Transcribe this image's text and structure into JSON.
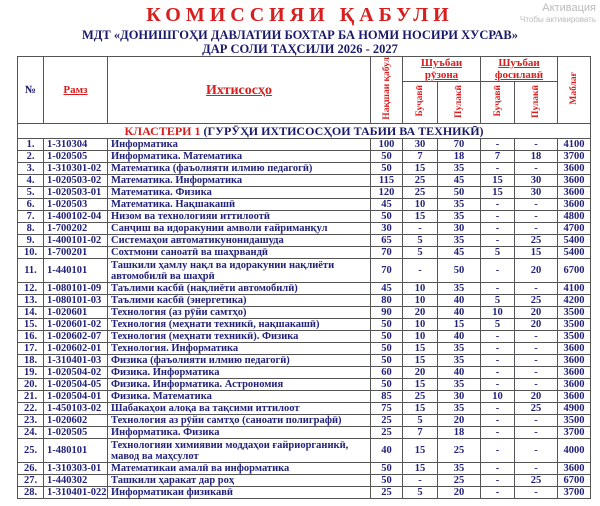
{
  "header": {
    "title": "КОМИССИЯИ ҚАБУЛИ",
    "subtitle": "МДТ «ДОНИШГОҲИ ДАВЛАТИИ БОХТАР БА НОМИ НОСИРИ ХУСРАВ»",
    "year_line": "ДАР СОЛИ ТАҲСИЛИ 2026 - 2027"
  },
  "columns": {
    "no": "№",
    "code": "Рамз",
    "name": "Ихтисосҳо",
    "plan": "Нақшаи қабул",
    "day": "Шуъбаи рӯзона",
    "distance": "Шуъбаи фосилавӣ",
    "budget": "Буҷавӣ",
    "paid": "Пулакӣ",
    "fee": "Маблағ"
  },
  "cluster": {
    "label": "КЛАСТЕРИ 1",
    "rest": "(ГУРӮҲИ ИХТИСОСҲОИ ТАБИИ ВА ТЕХНИКӢ)"
  },
  "rows": [
    {
      "no": "1.",
      "code": "1-310304",
      "name": "Информатика",
      "plan": "100",
      "db": "30",
      "dp": "70",
      "fb": "-",
      "fp": "-",
      "fee": "4100"
    },
    {
      "no": "2.",
      "code": "1-020505",
      "name": "Информатика. Математика",
      "plan": "50",
      "db": "7",
      "dp": "18",
      "fb": "7",
      "fp": "18",
      "fee": "3700"
    },
    {
      "no": "3.",
      "code": "1-310301-02",
      "name": "Математика (фаъолияти илмию педагогӣ)",
      "plan": "50",
      "db": "15",
      "dp": "35",
      "fb": "-",
      "fp": "-",
      "fee": "3600"
    },
    {
      "no": "4.",
      "code": "1-020503-02",
      "name": "Математика. Информатика",
      "plan": "115",
      "db": "25",
      "dp": "45",
      "fb": "15",
      "fp": "30",
      "fee": "3600"
    },
    {
      "no": "5.",
      "code": "1-020503-01",
      "name": "Математика. Физика",
      "plan": "120",
      "db": "25",
      "dp": "50",
      "fb": "15",
      "fp": "30",
      "fee": "3600"
    },
    {
      "no": "6.",
      "code": "1-020503",
      "name": "Математика. Нақшакашӣ",
      "plan": "45",
      "db": "10",
      "dp": "35",
      "fb": "-",
      "fp": "-",
      "fee": "3600"
    },
    {
      "no": "7.",
      "code": "1-400102-04",
      "name": "Низом ва технологияи иттилоотӣ",
      "plan": "50",
      "db": "15",
      "dp": "35",
      "fb": "-",
      "fp": "-",
      "fee": "4800"
    },
    {
      "no": "8.",
      "code": "1-700202",
      "name": "Санҷиш ва идоракунии амволи ғайриманқул",
      "plan": "30",
      "db": "-",
      "dp": "30",
      "fb": "-",
      "fp": "-",
      "fee": "4700"
    },
    {
      "no": "9.",
      "code": "1-400101-02",
      "name": "Системаҳои автоматикунонидашуда",
      "plan": "65",
      "db": "5",
      "dp": "35",
      "fb": "-",
      "fp": "25",
      "fee": "5400"
    },
    {
      "no": "10.",
      "code": "1-700201",
      "name": "Сохтмони саноатӣ ва шаҳрвандӣ",
      "plan": "70",
      "db": "5",
      "dp": "45",
      "fb": "5",
      "fp": "15",
      "fee": "5400"
    },
    {
      "no": "11.",
      "code": "1-440101",
      "name": "Ташкили ҳамлу нақл ва идоракунии нақлиёти автомобилӣ ва  шаҳрӣ",
      "plan": "70",
      "db": "-",
      "dp": "50",
      "fb": "-",
      "fp": "20",
      "fee": "6700"
    },
    {
      "no": "12.",
      "code": "1-080101-09",
      "name": "Таълими касбӣ (нақлиёти автомобилӣ)",
      "plan": "45",
      "db": "10",
      "dp": "35",
      "fb": "-",
      "fp": "-",
      "fee": "4100"
    },
    {
      "no": "13.",
      "code": "1-080101-03",
      "name": "Таълими касбӣ (энергетика)",
      "plan": "80",
      "db": "10",
      "dp": "40",
      "fb": "5",
      "fp": "25",
      "fee": "4200"
    },
    {
      "no": "14.",
      "code": "1-020601",
      "name": "Технология (аз рӯйи самтҳо)",
      "plan": "90",
      "db": "20",
      "dp": "40",
      "fb": "10",
      "fp": "20",
      "fee": "3500"
    },
    {
      "no": "15.",
      "code": "1-020601-02",
      "name": "Технология (меҳнати техникӣ, нақшакашӣ)",
      "plan": "50",
      "db": "10",
      "dp": "15",
      "fb": "5",
      "fp": "20",
      "fee": "3500"
    },
    {
      "no": "16.",
      "code": "1-020602-07",
      "name": "Технология (меҳнати техникӣ). Физика",
      "plan": "50",
      "db": "10",
      "dp": "40",
      "fb": "-",
      "fp": "-",
      "fee": "3500"
    },
    {
      "no": "17.",
      "code": "1-020602-01",
      "name": "Технология. Информатика",
      "plan": "50",
      "db": "15",
      "dp": "35",
      "fb": "-",
      "fp": "-",
      "fee": "3600"
    },
    {
      "no": "18.",
      "code": "1-310401-03",
      "name": "Физика (фаъолияти илмию педагогӣ)",
      "plan": "50",
      "db": "15",
      "dp": "35",
      "fb": "-",
      "fp": "-",
      "fee": "3600"
    },
    {
      "no": "19.",
      "code": "1-020504-02",
      "name": "Физика. Информатика",
      "plan": "60",
      "db": "20",
      "dp": "40",
      "fb": "-",
      "fp": "-",
      "fee": "3600"
    },
    {
      "no": "20.",
      "code": "1-020504-05",
      "name": "Физика. Информатика. Астрономия",
      "plan": "50",
      "db": "15",
      "dp": "35",
      "fb": "-",
      "fp": "-",
      "fee": "3600"
    },
    {
      "no": "21.",
      "code": "1-020504-01",
      "name": "Физика. Математика",
      "plan": "85",
      "db": "25",
      "dp": "30",
      "fb": "10",
      "fp": "20",
      "fee": "3600"
    },
    {
      "no": "22.",
      "code": "1-450103-02",
      "name": "Шабакаҳои алоқа ва тақсими иттилоот",
      "plan": "75",
      "db": "15",
      "dp": "35",
      "fb": "-",
      "fp": "25",
      "fee": "4900"
    },
    {
      "no": "23.",
      "code": "1-020602",
      "name": "Технология аз рӯйи самтҳо (саноати полиграфӣ)",
      "plan": "25",
      "db": "5",
      "dp": "20",
      "fb": "-",
      "fp": "-",
      "fee": "3500"
    },
    {
      "no": "24.",
      "code": "1-020505",
      "name": "Информатика. Физика",
      "plan": "25",
      "db": "7",
      "dp": "18",
      "fb": "-",
      "fp": "-",
      "fee": "3700"
    },
    {
      "no": "25.",
      "code": "1-480101",
      "name": "Технологияи химиявии моддаҳои ғайриорганикӣ, мавод ва маҳсулот",
      "plan": "40",
      "db": "15",
      "dp": "25",
      "fb": "-",
      "fp": "-",
      "fee": "4000"
    },
    {
      "no": "26.",
      "code": "1-310303-01",
      "name": "Математикаи амалӣ ва информатика",
      "plan": "50",
      "db": "15",
      "dp": "35",
      "fb": "-",
      "fp": "-",
      "fee": "3600"
    },
    {
      "no": "27.",
      "code": "1-440302",
      "name": "Ташкили ҳаракат дар роҳ",
      "plan": "50",
      "db": "-",
      "dp": "25",
      "fb": "-",
      "fp": "25",
      "fee": "6700"
    },
    {
      "no": "28.",
      "code": "1-310401-0225",
      "name": "Информатикаи физикавӣ",
      "plan": "25",
      "db": "5",
      "dp": "20",
      "fb": "-",
      "fp": "-",
      "fee": "3700"
    }
  ],
  "watermark": {
    "line1": "Активация",
    "line2": "Чтобы активировать"
  },
  "colors": {
    "title": "#d81e1e",
    "text": "#22227a",
    "header": "#d81e1e"
  }
}
